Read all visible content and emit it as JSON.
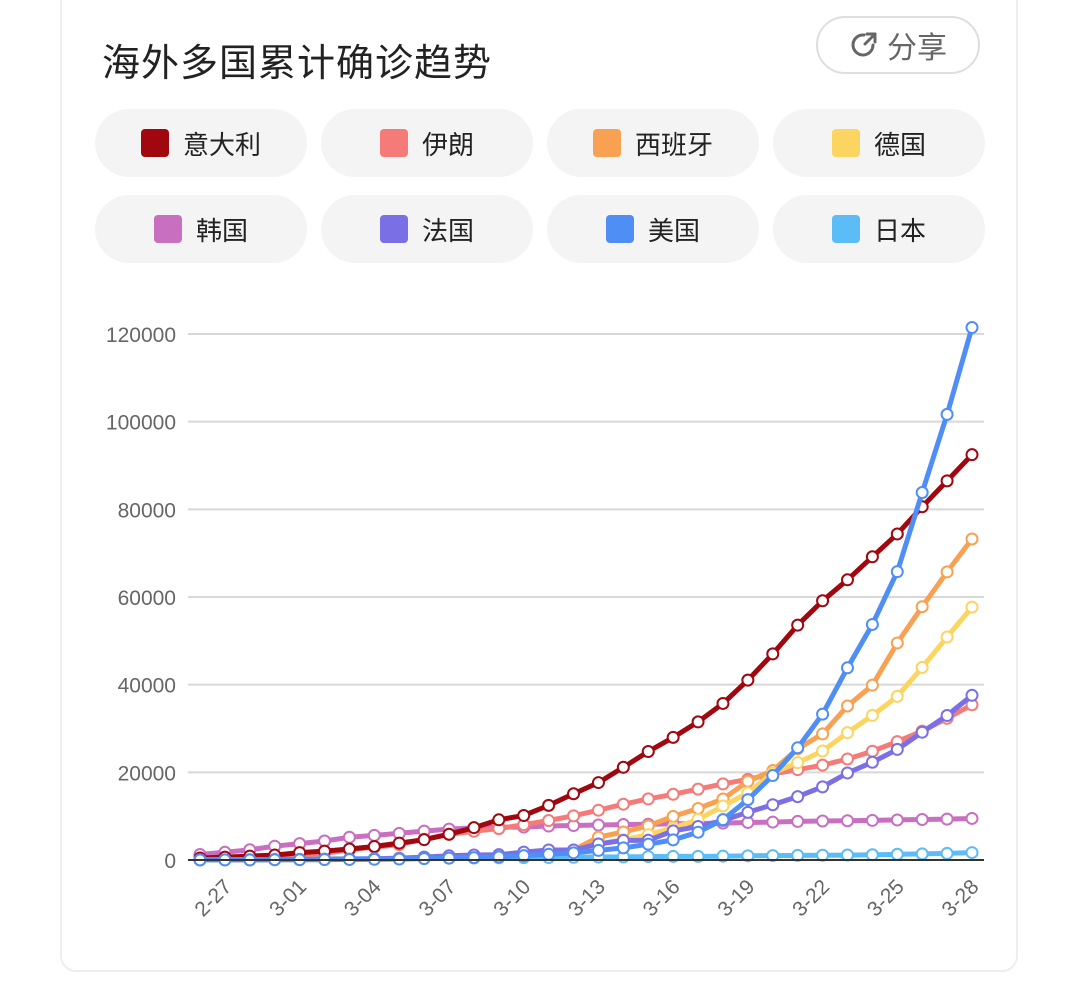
{
  "header": {
    "title": "海外多国累计确诊趋势",
    "share_label": "分享"
  },
  "chart_data": {
    "type": "line",
    "title": "海外多国累计确诊趋势",
    "legend_position": "top",
    "grid": "horizontal",
    "ylim": [
      0,
      120000
    ],
    "yticks": [
      0,
      20000,
      40000,
      60000,
      80000,
      100000,
      120000
    ],
    "ytick_labels": [
      "0",
      "20000",
      "40000",
      "60000",
      "80000",
      "100000",
      "120000"
    ],
    "x": [
      "2-26",
      "2-27",
      "2-28",
      "2-29",
      "3-01",
      "3-02",
      "3-03",
      "3-04",
      "3-05",
      "3-06",
      "3-07",
      "3-08",
      "3-09",
      "3-10",
      "3-11",
      "3-12",
      "3-13",
      "3-14",
      "3-15",
      "3-16",
      "3-17",
      "3-18",
      "3-19",
      "3-20",
      "3-21",
      "3-22",
      "3-23",
      "3-24",
      "3-25",
      "3-26",
      "3-27",
      "3-28"
    ],
    "xtick_labels": [
      "2-27",
      "3-01",
      "3-04",
      "3-07",
      "3-10",
      "3-13",
      "3-16",
      "3-19",
      "3-22",
      "3-25",
      "3-28"
    ],
    "series": [
      {
        "name": "韩国",
        "color": "#c86fc0",
        "values": [
          1261,
          1766,
          2337,
          3150,
          3736,
          4335,
          5186,
          5621,
          6088,
          6593,
          7041,
          7313,
          7478,
          7513,
          7755,
          7869,
          7979,
          8086,
          8162,
          8236,
          8320,
          8413,
          8565,
          8652,
          8799,
          8897,
          8961,
          9037,
          9137,
          9241,
          9332,
          9478
        ]
      },
      {
        "name": "日本",
        "color": "#5cbcf8",
        "values": [
          164,
          186,
          210,
          230,
          243,
          256,
          274,
          293,
          331,
          360,
          420,
          461,
          502,
          530,
          568,
          620,
          675,
          716,
          780,
          814,
          829,
          873,
          950,
          1007,
          1046,
          1089,
          1128,
          1193,
          1307,
          1387,
          1499,
          1693
        ]
      },
      {
        "name": "伊朗",
        "color": "#f47b78",
        "values": [
          139,
          245,
          388,
          593,
          978,
          1501,
          2336,
          2922,
          3513,
          4747,
          5823,
          6566,
          7161,
          8042,
          9000,
          10075,
          11364,
          12729,
          13938,
          14991,
          16169,
          17361,
          18407,
          19644,
          20610,
          21638,
          23049,
          24811,
          27017,
          29406,
          32332,
          35408
        ]
      },
      {
        "name": "意大利",
        "color": "#a0070f",
        "values": [
          453,
          655,
          888,
          1128,
          1694,
          2036,
          2502,
          3089,
          3858,
          4636,
          5883,
          7375,
          9172,
          10149,
          12462,
          15113,
          17660,
          21157,
          24747,
          27980,
          31506,
          35713,
          41035,
          47021,
          53578,
          59138,
          63927,
          69176,
          74386,
          80589,
          86498,
          92472
        ]
      },
      {
        "name": "西班牙",
        "color": "#f8a152",
        "values": [
          12,
          25,
          32,
          45,
          84,
          120,
          165,
          222,
          259,
          400,
          500,
          673,
          1073,
          1695,
          2277,
          2277,
          5232,
          6391,
          7798,
          9942,
          11748,
          13910,
          17963,
          20410,
          25374,
          28768,
          35136,
          39885,
          49515,
          57786,
          65719,
          73235
        ]
      },
      {
        "name": "德国",
        "color": "#fcd561",
        "values": [
          27,
          46,
          48,
          79,
          130,
          159,
          196,
          262,
          482,
          670,
          799,
          1040,
          1176,
          1457,
          1908,
          2078,
          3675,
          4585,
          5795,
          7272,
          9257,
          12327,
          15320,
          19848,
          22213,
          24873,
          29056,
          32986,
          37323,
          43938,
          50871,
          57695
        ]
      },
      {
        "name": "法国",
        "color": "#7b6fe6",
        "values": [
          18,
          38,
          57,
          100,
          130,
          191,
          204,
          288,
          380,
          656,
          957,
          1134,
          1217,
          1791,
          2289,
          2289,
          3661,
          4469,
          4499,
          6633,
          7652,
          9043,
          10871,
          12612,
          14459,
          16689,
          19856,
          22304,
          25233,
          29155,
          32964,
          37575
        ]
      },
      {
        "name": "美国",
        "color": "#4f8ef5",
        "values": [
          15,
          15,
          15,
          68,
          75,
          100,
          124,
          158,
          221,
          319,
          435,
          541,
          704,
          994,
          1301,
          1630,
          2183,
          2770,
          3613,
          4596,
          6344,
          9197,
          13779,
          19273,
          25600,
          33276,
          43847,
          53740,
          65778,
          83836,
          101657,
          121478
        ]
      }
    ]
  },
  "colors": {
    "grid": "#d8d8d8",
    "axis": "#333333",
    "tick_text": "#666666"
  }
}
